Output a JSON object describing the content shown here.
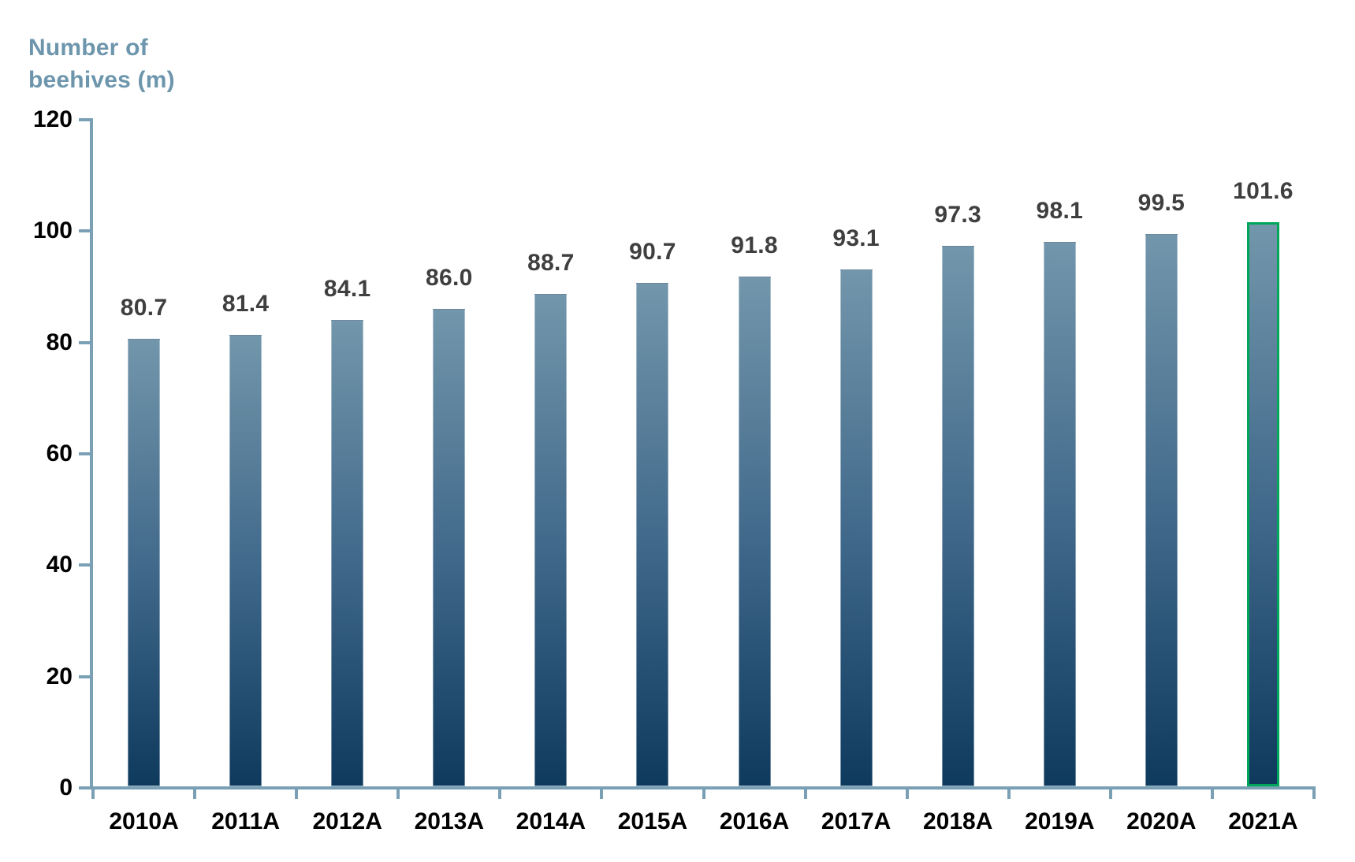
{
  "chart_data": {
    "type": "bar",
    "title": "Number of beehives (m)",
    "title_lines": [
      "Number of",
      "beehives (m)"
    ],
    "categories": [
      "2010A",
      "2011A",
      "2012A",
      "2013A",
      "2014A",
      "2015A",
      "2016A",
      "2017A",
      "2018A",
      "2019A",
      "2020A",
      "2021A"
    ],
    "values": [
      80.7,
      81.4,
      84.1,
      86.0,
      88.7,
      90.7,
      91.8,
      93.1,
      97.3,
      98.1,
      99.5,
      101.6
    ],
    "value_labels": [
      "80.7",
      "81.4",
      "84.1",
      "86.0",
      "88.7",
      "90.7",
      "91.8",
      "93.1",
      "97.3",
      "98.1",
      "99.5",
      "101.6"
    ],
    "xlabel": "",
    "ylabel": "Number of beehives (m)",
    "ylim": [
      0,
      120
    ],
    "yticks": [
      0,
      20,
      40,
      60,
      80,
      100,
      120
    ],
    "grid": false,
    "legend": "none",
    "highlight": {
      "category": "2021A",
      "index": 11,
      "border_color": "#00A65A"
    },
    "colors": {
      "bar_gradient_top": "#7296AB",
      "bar_gradient_mid": "#40688A",
      "bar_gradient_bottom": "#0E3A5E",
      "axis_line": "#7AA0B5",
      "value_label": "#3F3F3F",
      "tick_label": "#000000",
      "title": "#6D96AD"
    }
  }
}
